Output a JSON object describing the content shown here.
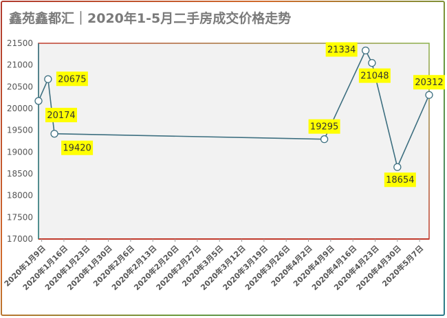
{
  "title": "鑫苑鑫都汇｜2020年1-5月二手房成交价格走势",
  "chart_data": {
    "type": "line",
    "title": "鑫苑鑫都汇｜2020年1-5月二手房成交价格走势",
    "xlabel": "",
    "ylabel": "",
    "ylim": [
      17000,
      21500
    ],
    "yticks": [
      17000,
      17500,
      18000,
      18500,
      19000,
      19500,
      20000,
      20500,
      21000,
      21500
    ],
    "xlim": [
      "2020-01-08",
      "2020-05-10"
    ],
    "xticks": [
      {
        "date": "2020-01-09",
        "label": "2020年1月9日"
      },
      {
        "date": "2020-01-16",
        "label": "2020年1月16日"
      },
      {
        "date": "2020-01-23",
        "label": "2020年1月23日"
      },
      {
        "date": "2020-01-30",
        "label": "2020年1月30日"
      },
      {
        "date": "2020-02-06",
        "label": "2020年2月6日"
      },
      {
        "date": "2020-02-13",
        "label": "2020年2月13日"
      },
      {
        "date": "2020-02-20",
        "label": "2020年2月20日"
      },
      {
        "date": "2020-02-27",
        "label": "2020年2月27日"
      },
      {
        "date": "2020-03-05",
        "label": "2020年3月5日"
      },
      {
        "date": "2020-03-12",
        "label": "2020年3月12日"
      },
      {
        "date": "2020-03-19",
        "label": "2020年3月19日"
      },
      {
        "date": "2020-03-26",
        "label": "2020年3月26日"
      },
      {
        "date": "2020-04-02",
        "label": "2020年4月2日"
      },
      {
        "date": "2020-04-09",
        "label": "2020年4月9日"
      },
      {
        "date": "2020-04-16",
        "label": "2020年4月16日"
      },
      {
        "date": "2020-04-23",
        "label": "2020年4月23日"
      },
      {
        "date": "2020-04-30",
        "label": "2020年4月30日"
      },
      {
        "date": "2020-05-07",
        "label": "2020年5月7日"
      }
    ],
    "series": [
      {
        "color": "#3d6f80",
        "points": [
          {
            "x": "2020-01-08",
            "y": 20174,
            "label": "20174",
            "label_pos": "below-right"
          },
          {
            "x": "2020-01-11",
            "y": 20675,
            "label": "20675",
            "label_pos": "right"
          },
          {
            "x": "2020-01-13",
            "y": 19420,
            "label": "19420",
            "label_pos": "below-right"
          },
          {
            "x": "2020-04-07",
            "y": 19295,
            "label": "19295",
            "label_pos": "above"
          },
          {
            "x": "2020-04-20",
            "y": 21334,
            "label": "21334",
            "label_pos": "left"
          },
          {
            "x": "2020-04-22",
            "y": 21048,
            "label": "21048",
            "label_pos": "below"
          },
          {
            "x": "2020-04-30",
            "y": 18654,
            "label": "18654",
            "label_pos": "below"
          },
          {
            "x": "2020-05-10",
            "y": 20312,
            "label": "20312",
            "label_pos": "above"
          }
        ]
      }
    ],
    "grid": false,
    "legend": "none",
    "colors": {
      "plot_background": "#f2f2f2",
      "label_highlight": "#ffff00",
      "axis_text": "#555555"
    }
  }
}
